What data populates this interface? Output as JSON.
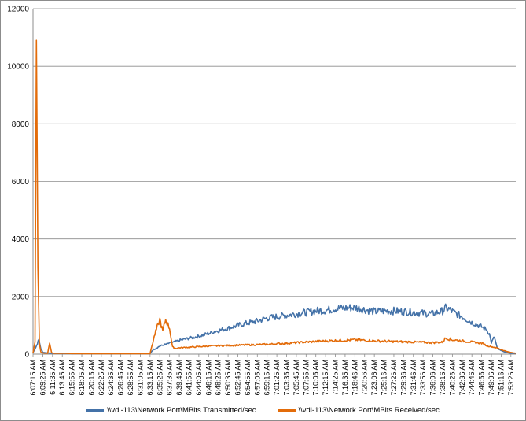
{
  "chart_data": {
    "type": "line",
    "title": "",
    "xlabel": "",
    "ylabel": "",
    "ylim": [
      0,
      12000
    ],
    "yticks": [
      0,
      2000,
      4000,
      6000,
      8000,
      10000,
      12000
    ],
    "grid": "horizontal",
    "legend_position": "bottom",
    "x_tick_labels": [
      "6:07:15 AM",
      "6:09:25 AM",
      "6:11:35 AM",
      "6:13:45 AM",
      "6:15:55 AM",
      "6:18:05 AM",
      "6:20:15 AM",
      "6:22:25 AM",
      "6:24:35 AM",
      "6:26:45 AM",
      "6:28:55 AM",
      "6:31:05 AM",
      "6:33:15 AM",
      "6:35:25 AM",
      "6:37:35 AM",
      "6:39:45 AM",
      "6:41:55 AM",
      "6:44:05 AM",
      "6:46:15 AM",
      "6:48:25 AM",
      "6:50:35 AM",
      "6:52:45 AM",
      "6:54:55 AM",
      "6:57:05 AM",
      "6:59:15 AM",
      "7:01:25 AM",
      "7:03:35 AM",
      "7:05:45 AM",
      "7:07:55 AM",
      "7:10:05 AM",
      "7:12:15 AM",
      "7:14:25 AM",
      "7:16:35 AM",
      "7:18:46 AM",
      "7:20:56 AM",
      "7:23:06 AM",
      "7:25:16 AM",
      "7:27:26 AM",
      "7:29:36 AM",
      "7:31:46 AM",
      "7:33:56 AM",
      "7:36:06 AM",
      "7:38:16 AM",
      "7:40:26 AM",
      "7:42:36 AM",
      "7:44:46 AM",
      "7:46:56 AM",
      "7:49:06 AM",
      "7:51:16 AM",
      "7:53:26 AM"
    ],
    "series": [
      {
        "name": "\\\\vdi-113\\Network Port\\MBits Transmitted/sec",
        "color": "#4472a8",
        "x": [
          0,
          0.3,
          0.6,
          0.8,
          1,
          1.5,
          2,
          3,
          4,
          6,
          8,
          10,
          12,
          12.3,
          12.6,
          13,
          13.5,
          14,
          14.5,
          15,
          16,
          17,
          18,
          19,
          20,
          21,
          22,
          23,
          24,
          25,
          26,
          27,
          28,
          29,
          30,
          31,
          32,
          33,
          34,
          35,
          36,
          37,
          38,
          39,
          40,
          41,
          42,
          42.3,
          42.7,
          43,
          44,
          45,
          46,
          46.5,
          46.8,
          47,
          47.3,
          47.6,
          48,
          48.5,
          49,
          49.5
        ],
        "values": [
          50,
          250,
          500,
          200,
          60,
          40,
          30,
          25,
          20,
          20,
          20,
          20,
          20,
          150,
          200,
          280,
          330,
          380,
          420,
          480,
          550,
          620,
          720,
          820,
          900,
          1000,
          1080,
          1150,
          1250,
          1300,
          1350,
          1400,
          1450,
          1500,
          1520,
          1580,
          1600,
          1620,
          1550,
          1480,
          1500,
          1500,
          1480,
          1450,
          1420,
          1400,
          1500,
          1600,
          1550,
          1480,
          1300,
          1100,
          950,
          850,
          700,
          400,
          600,
          200,
          120,
          60,
          30,
          20
        ]
      },
      {
        "name": "\\\\vdi-113\\Network Port\\MBits Received/sec",
        "color": "#e36c0a",
        "x": [
          0,
          0.2,
          0.35,
          0.5,
          0.65,
          0.8,
          1,
          1.5,
          1.7,
          1.9,
          2.1,
          2.5,
          3,
          4,
          6,
          8,
          10,
          12,
          12.2,
          12.5,
          12.8,
          13,
          13.3,
          13.6,
          14,
          14.3,
          14.6,
          15,
          16,
          17,
          18,
          19,
          20,
          21,
          22,
          23,
          24,
          25,
          26,
          27,
          28,
          29,
          30,
          31,
          32,
          33,
          34,
          35,
          36,
          37,
          38,
          39,
          40,
          41,
          42,
          42.3,
          42.7,
          43,
          44,
          45,
          46,
          46.5,
          47,
          47.5,
          48,
          48.5,
          49,
          49.5
        ],
        "values": [
          40,
          400,
          10900,
          3000,
          400,
          80,
          40,
          30,
          380,
          50,
          30,
          30,
          30,
          20,
          15,
          15,
          15,
          15,
          300,
          700,
          1000,
          1200,
          800,
          1200,
          900,
          250,
          200,
          220,
          240,
          260,
          280,
          290,
          300,
          310,
          320,
          330,
          340,
          360,
          380,
          400,
          420,
          440,
          460,
          470,
          480,
          500,
          480,
          460,
          450,
          440,
          430,
          420,
          410,
          400,
          420,
          560,
          520,
          500,
          460,
          420,
          380,
          300,
          260,
          220,
          160,
          100,
          60,
          30
        ]
      }
    ]
  },
  "legend": {
    "items": [
      {
        "label": "\\\\vdi-113\\Network Port\\MBits Transmitted/sec",
        "color": "#4472a8"
      },
      {
        "label": "\\\\vdi-113\\Network Port\\MBits Received/sec",
        "color": "#e36c0a"
      }
    ]
  }
}
